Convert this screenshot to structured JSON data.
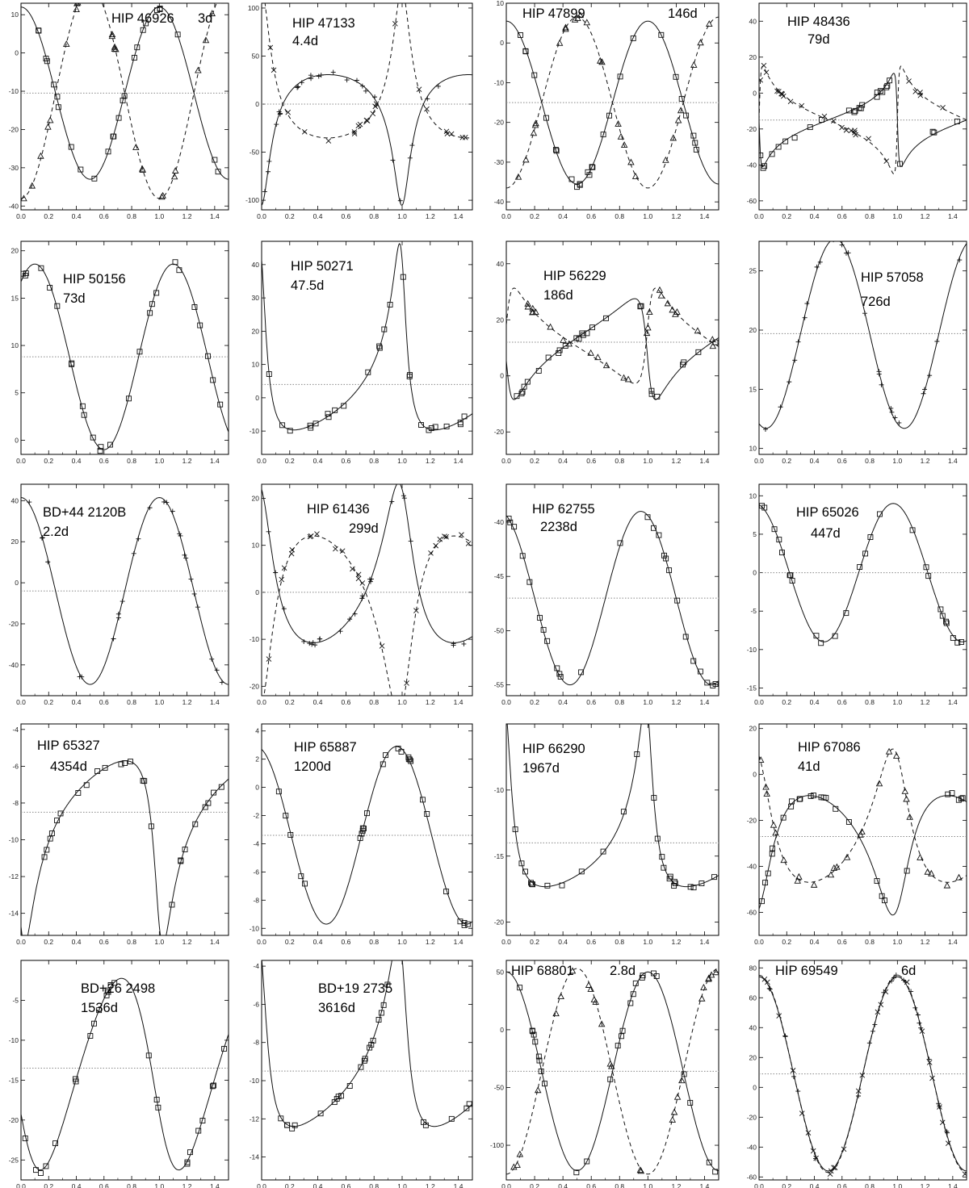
{
  "chart_data": [
    {
      "type": "scatter",
      "name": "HIP 46926",
      "period": "3d",
      "xlim": [
        0,
        1.5
      ],
      "ylim": [
        -41,
        13
      ],
      "yticks": [
        -40,
        -30,
        -20,
        -10,
        0,
        10
      ],
      "gamma": -10.5,
      "curves": [
        {
          "style": "solid",
          "marker": "square",
          "kind": "sine",
          "amp": 22.5,
          "x0": 0.0
        },
        {
          "style": "dashed",
          "marker": "triangle",
          "kind": "sine",
          "amp": -27.5,
          "x0": 0.0
        }
      ]
    },
    {
      "type": "scatter",
      "name": "HIP 47133",
      "period": "4.4d",
      "xlim": [
        0,
        1.5
      ],
      "ylim": [
        -110,
        105
      ],
      "yticks": [
        -100,
        -50,
        0,
        50,
        100
      ],
      "gamma": 0,
      "curves": [
        {
          "style": "solid",
          "marker": "plus",
          "kind": "ecc",
          "K": 68,
          "e": 0.55,
          "omega": 3.2,
          "T0": 0.0
        },
        {
          "style": "dashed",
          "marker": "cross",
          "kind": "ecc",
          "K": -78,
          "e": 0.55,
          "omega": 3.2,
          "T0": 0.0
        }
      ]
    },
    {
      "type": "scatter",
      "name": "HIP 47899",
      "period": "146d",
      "xlim": [
        0,
        1.5
      ],
      "ylim": [
        -42,
        10
      ],
      "yticks": [
        -40,
        -30,
        -20,
        -10,
        0,
        10
      ],
      "gamma": -15,
      "curves": [
        {
          "style": "solid",
          "marker": "square",
          "kind": "sine",
          "amp": 20.5,
          "x0": 0.0
        },
        {
          "style": "dashed",
          "marker": "triangle",
          "kind": "sine",
          "amp": -21.5,
          "x0": 0.0
        }
      ]
    },
    {
      "type": "scatter",
      "name": "HIP 48436",
      "period": "79d",
      "xlim": [
        0,
        1.5
      ],
      "ylim": [
        -65,
        50
      ],
      "yticks": [
        -60,
        -40,
        -20,
        0,
        20,
        40
      ],
      "gamma": -15,
      "curves": [
        {
          "style": "solid",
          "marker": "square",
          "kind": "ecc",
          "K": 26,
          "e": 0.8,
          "omega": 1.57,
          "T0": 0.0
        },
        {
          "style": "dashed",
          "marker": "cross",
          "kind": "ecc",
          "K": -30,
          "e": 0.8,
          "omega": 1.57,
          "T0": 0.0
        }
      ]
    },
    {
      "type": "scatter",
      "name": "HIP 50156",
      "period": "73d",
      "xlim": [
        0,
        1.5
      ],
      "ylim": [
        -1.5,
        21
      ],
      "yticks": [
        0,
        5,
        10,
        15,
        20
      ],
      "gamma": 8.8,
      "curves": [
        {
          "style": "solid",
          "marker": "square",
          "kind": "sine",
          "amp": 9.8,
          "x0": 0.1
        }
      ]
    },
    {
      "type": "scatter",
      "name": "HIP 50271",
      "period": "47.5d",
      "xlim": [
        0,
        1.5
      ],
      "ylim": [
        -17,
        47
      ],
      "yticks": [
        -10,
        0,
        10,
        20,
        30,
        40
      ],
      "gamma": 4,
      "curves": [
        {
          "style": "solid",
          "marker": "square",
          "kind": "ecc",
          "K": 28,
          "e": 0.62,
          "omega": 0.6,
          "T0": 0.0
        }
      ]
    },
    {
      "type": "scatter",
      "name": "HIP 56229",
      "period": "186d",
      "xlim": [
        0,
        1.5
      ],
      "ylim": [
        -28,
        48
      ],
      "yticks": [
        -20,
        0,
        20,
        40
      ],
      "gamma": 12,
      "curves": [
        {
          "style": "solid",
          "marker": "square",
          "kind": "ecc",
          "K": 18,
          "e": 0.6,
          "omega": 1.8,
          "T0": 0.0
        },
        {
          "style": "dashed",
          "marker": "triangle",
          "kind": "ecc",
          "K": -17,
          "e": 0.6,
          "omega": 1.8,
          "T0": 0.0
        }
      ]
    },
    {
      "type": "scatter",
      "name": "HIP 57058",
      "period": "726d",
      "xlim": [
        0,
        1.5
      ],
      "ylim": [
        9.5,
        27.5
      ],
      "yticks": [
        10,
        15,
        20,
        25
      ],
      "gamma": 19.7,
      "curves": [
        {
          "style": "solid",
          "marker": "plus",
          "kind": "sine",
          "amp": 8,
          "x0": 0.55
        }
      ]
    },
    {
      "type": "scatter",
      "name": "BD+44 2120B",
      "period": "2.2d",
      "xlim": [
        0,
        1.5
      ],
      "ylim": [
        -55,
        48
      ],
      "yticks": [
        -40,
        -20,
        0,
        20,
        40
      ],
      "gamma": -4,
      "curves": [
        {
          "style": "solid",
          "marker": "plus",
          "kind": "sine",
          "amp": 45.5,
          "x0": 1.0
        }
      ]
    },
    {
      "type": "scatter",
      "name": "HIP 61436",
      "period": "299d",
      "xlim": [
        0,
        1.5
      ],
      "ylim": [
        -22,
        23
      ],
      "yticks": [
        -20,
        -10,
        0,
        10,
        20
      ],
      "gamma": 0,
      "curves": [
        {
          "style": "solid",
          "marker": "plus",
          "kind": "ecc",
          "K": 17,
          "e": 0.4,
          "omega": 0.4,
          "T0": 0.0
        },
        {
          "style": "dashed",
          "marker": "cross",
          "kind": "ecc",
          "K": -19,
          "e": 0.4,
          "omega": 0.4,
          "T0": 0.0
        }
      ]
    },
    {
      "type": "scatter",
      "name": "HIP 62755",
      "period": "2238d",
      "xlim": [
        0,
        1.5
      ],
      "ylim": [
        -56,
        -36.5
      ],
      "yticks": [
        -55,
        -50,
        -45,
        -40
      ],
      "gamma": -47,
      "curves": [
        {
          "style": "solid",
          "marker": "square",
          "kind": "sine",
          "amp": 8,
          "x0": 0.95
        }
      ]
    },
    {
      "type": "scatter",
      "name": "HIP 65026",
      "period": "447d",
      "xlim": [
        0,
        1.5
      ],
      "ylim": [
        -16,
        11.5
      ],
      "yticks": [
        -15,
        -10,
        -5,
        0,
        5,
        10
      ],
      "gamma": 0,
      "curves": [
        {
          "style": "solid",
          "marker": "square",
          "kind": "sine",
          "amp": 9,
          "x0": 0.97
        }
      ]
    },
    {
      "type": "scatter",
      "name": "HIP 65327",
      "period": "4354d",
      "xlim": [
        0,
        1.5
      ],
      "ylim": [
        -15.2,
        -3.7
      ],
      "yticks": [
        -14,
        -12,
        -10,
        -8,
        -6,
        -4
      ],
      "gamma": -8.5,
      "curves": [
        {
          "style": "solid",
          "marker": "square",
          "kind": "ecc",
          "K": 5,
          "e": 0.55,
          "omega": 2.5,
          "T0": 0.0
        }
      ]
    },
    {
      "type": "scatter",
      "name": "HIP 65887",
      "period": "1200d",
      "xlim": [
        0,
        1.5
      ],
      "ylim": [
        -10.5,
        4.5
      ],
      "yticks": [
        -10,
        -8,
        -6,
        -4,
        -2,
        0,
        2,
        4
      ],
      "gamma": -3.4,
      "curves": [
        {
          "style": "solid",
          "marker": "square",
          "kind": "sine",
          "amp": 6.3,
          "x0": 0.96
        }
      ]
    },
    {
      "type": "scatter",
      "name": "HIP 66290",
      "period": "1967d",
      "xlim": [
        0,
        1.5
      ],
      "ylim": [
        -21,
        -5
      ],
      "yticks": [
        -20,
        -15,
        -10
      ],
      "gamma": -14,
      "curves": [
        {
          "style": "solid",
          "marker": "square",
          "kind": "ecc",
          "K": 7,
          "e": 0.6,
          "omega": 0.5,
          "T0": 0.0
        }
      ]
    },
    {
      "type": "scatter",
      "name": "HIP 67086",
      "period": "41d",
      "xlim": [
        0,
        1.5
      ],
      "ylim": [
        -70,
        22
      ],
      "yticks": [
        -60,
        -40,
        -20,
        0,
        20
      ],
      "gamma": -27,
      "curves": [
        {
          "style": "solid",
          "marker": "square",
          "kind": "ecc",
          "K": 26,
          "e": 0.35,
          "omega": 3.6,
          "T0": 0.0
        },
        {
          "style": "dashed",
          "marker": "triangle",
          "kind": "ecc",
          "K": -29,
          "e": 0.35,
          "omega": 3.6,
          "T0": 0.0
        }
      ]
    },
    {
      "type": "scatter",
      "name": "BD+26 2498",
      "period": "1536d",
      "xlim": [
        0,
        1.5
      ],
      "ylim": [
        -27.5,
        0
      ],
      "yticks": [
        -25,
        -20,
        -15,
        -10,
        -5
      ],
      "gamma": -13.5,
      "curves": [
        {
          "style": "solid",
          "marker": "square",
          "kind": "ecc",
          "K": 12,
          "e": 0.15,
          "omega": 2.0,
          "T0": 0.0
        }
      ]
    },
    {
      "type": "scatter",
      "name": "BD+19 2735",
      "period": "3616d",
      "xlim": [
        0,
        1.5
      ],
      "ylim": [
        -15.2,
        -3.7
      ],
      "yticks": [
        -14,
        -12,
        -10,
        -8,
        -6,
        -4
      ],
      "gamma": -9.5,
      "curves": [
        {
          "style": "solid",
          "marker": "square",
          "kind": "ecc",
          "K": 5,
          "e": 0.55,
          "omega": 0.7,
          "T0": 0.0
        }
      ]
    },
    {
      "type": "scatter",
      "name": "HIP 68801",
      "period": "2.8d",
      "xlim": [
        0,
        1.5
      ],
      "ylim": [
        -130,
        60
      ],
      "yticks": [
        -100,
        -50,
        0,
        50
      ],
      "gamma": -36,
      "curves": [
        {
          "style": "solid",
          "marker": "square",
          "kind": "sine",
          "amp": 86,
          "x0": 0.0
        },
        {
          "style": "dashed",
          "marker": "triangle",
          "kind": "sine",
          "amp": -89,
          "x0": 0.0
        }
      ]
    },
    {
      "type": "scatter",
      "name": "HIP 69549",
      "period": "6d",
      "xlim": [
        0,
        1.5
      ],
      "ylim": [
        -62,
        85
      ],
      "yticks": [
        -60,
        -40,
        -20,
        0,
        20,
        40,
        60,
        80
      ],
      "gamma": 9,
      "curves": [
        {
          "style": "solid",
          "marker": "plus",
          "kind": "sine",
          "amp": 65,
          "x0": 0.0
        },
        {
          "style": "dashed",
          "marker": "cross",
          "kind": "sine",
          "amp": -66,
          "x0": 0.5,
          "phase_shift": true
        }
      ]
    }
  ],
  "xticks": [
    "0.0",
    "0.2",
    "0.4",
    "0.6",
    "0.8",
    "1.0",
    "1.2",
    "1.4"
  ]
}
